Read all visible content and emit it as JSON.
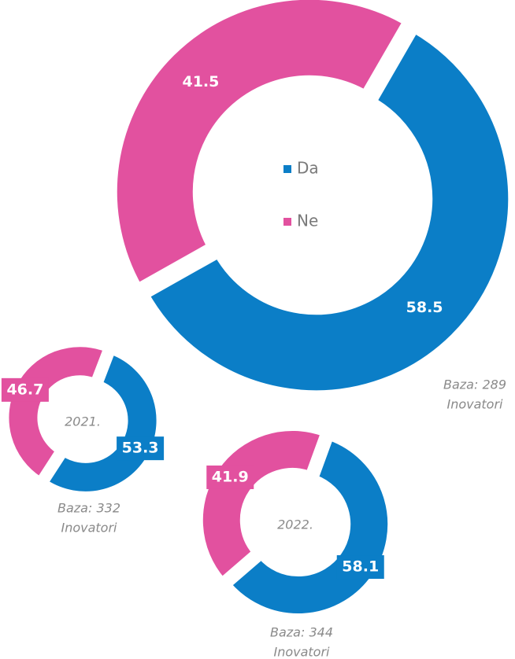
{
  "chart_data": [
    {
      "type": "donut",
      "categories": [
        "Da",
        "Ne"
      ],
      "values": [
        58.5,
        41.5
      ],
      "colors": [
        "#0b7ec7",
        "#e2519f"
      ],
      "legend": true,
      "note": [
        "Baza: 289",
        "Inovatori"
      ]
    },
    {
      "type": "donut",
      "center_label": "2021.",
      "categories": [
        "Da",
        "Ne"
      ],
      "values": [
        53.3,
        46.7
      ],
      "colors": [
        "#0b7ec7",
        "#e2519f"
      ],
      "note": [
        "Baza: 332",
        "Inovatori"
      ]
    },
    {
      "type": "donut",
      "center_label": "2022.",
      "categories": [
        "Da",
        "Ne"
      ],
      "values": [
        58.1,
        41.9
      ],
      "colors": [
        "#0b7ec7",
        "#e2519f"
      ],
      "note": [
        "Baza: 344",
        "Inovatori"
      ]
    }
  ]
}
